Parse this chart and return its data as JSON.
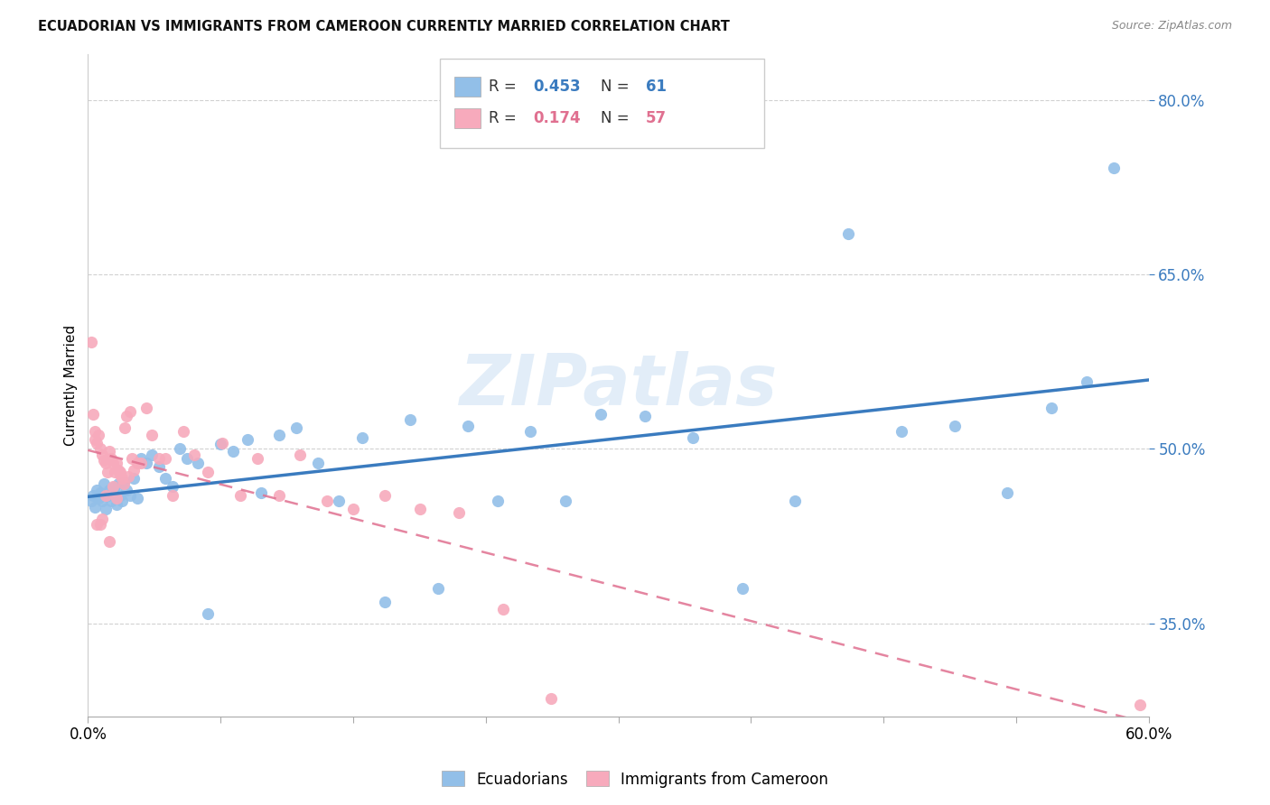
{
  "title": "ECUADORIAN VS IMMIGRANTS FROM CAMEROON CURRENTLY MARRIED CORRELATION CHART",
  "source": "Source: ZipAtlas.com",
  "ylabel": "Currently Married",
  "yticks_labels": [
    "35.0%",
    "50.0%",
    "65.0%",
    "80.0%"
  ],
  "ytick_vals": [
    0.35,
    0.5,
    0.65,
    0.8
  ],
  "xlim": [
    0.0,
    0.6
  ],
  "ylim": [
    0.27,
    0.84
  ],
  "watermark": "ZIPatlas",
  "blue_color": "#92bfe8",
  "pink_color": "#f7aabc",
  "blue_line_color": "#3a7bbf",
  "pink_line_color": "#e07090",
  "r_blue": 0.453,
  "n_blue": 61,
  "r_pink": 0.174,
  "n_pink": 57,
  "ecu_x": [
    0.002,
    0.003,
    0.004,
    0.005,
    0.006,
    0.007,
    0.008,
    0.009,
    0.01,
    0.011,
    0.012,
    0.013,
    0.014,
    0.015,
    0.016,
    0.017,
    0.018,
    0.019,
    0.02,
    0.022,
    0.024,
    0.026,
    0.028,
    0.03,
    0.033,
    0.036,
    0.04,
    0.044,
    0.048,
    0.052,
    0.056,
    0.062,
    0.068,
    0.075,
    0.082,
    0.09,
    0.098,
    0.108,
    0.118,
    0.13,
    0.142,
    0.155,
    0.168,
    0.182,
    0.198,
    0.215,
    0.232,
    0.25,
    0.27,
    0.29,
    0.315,
    0.342,
    0.37,
    0.4,
    0.43,
    0.46,
    0.49,
    0.52,
    0.545,
    0.565,
    0.58
  ],
  "ecu_y": [
    0.455,
    0.46,
    0.45,
    0.465,
    0.458,
    0.462,
    0.455,
    0.47,
    0.448,
    0.46,
    0.465,
    0.455,
    0.462,
    0.468,
    0.452,
    0.47,
    0.46,
    0.455,
    0.472,
    0.465,
    0.46,
    0.475,
    0.458,
    0.492,
    0.488,
    0.495,
    0.485,
    0.475,
    0.468,
    0.5,
    0.492,
    0.488,
    0.358,
    0.504,
    0.498,
    0.508,
    0.462,
    0.512,
    0.518,
    0.488,
    0.455,
    0.51,
    0.368,
    0.525,
    0.38,
    0.52,
    0.455,
    0.515,
    0.455,
    0.53,
    0.528,
    0.51,
    0.38,
    0.455,
    0.685,
    0.515,
    0.52,
    0.462,
    0.535,
    0.558,
    0.742
  ],
  "cam_x": [
    0.002,
    0.003,
    0.004,
    0.004,
    0.005,
    0.006,
    0.007,
    0.008,
    0.009,
    0.01,
    0.011,
    0.012,
    0.013,
    0.014,
    0.015,
    0.016,
    0.017,
    0.018,
    0.019,
    0.02,
    0.021,
    0.022,
    0.023,
    0.024,
    0.025,
    0.026,
    0.028,
    0.03,
    0.033,
    0.036,
    0.04,
    0.044,
    0.048,
    0.054,
    0.06,
    0.068,
    0.076,
    0.086,
    0.096,
    0.108,
    0.12,
    0.135,
    0.15,
    0.168,
    0.188,
    0.21,
    0.235,
    0.262,
    0.005,
    0.007,
    0.008,
    0.01,
    0.012,
    0.014,
    0.016,
    0.018,
    0.595
  ],
  "cam_y": [
    0.592,
    0.53,
    0.515,
    0.508,
    0.505,
    0.512,
    0.5,
    0.495,
    0.49,
    0.488,
    0.48,
    0.498,
    0.492,
    0.488,
    0.48,
    0.488,
    0.482,
    0.48,
    0.475,
    0.47,
    0.518,
    0.528,
    0.476,
    0.532,
    0.492,
    0.482,
    0.488,
    0.488,
    0.535,
    0.512,
    0.492,
    0.492,
    0.46,
    0.515,
    0.495,
    0.48,
    0.505,
    0.46,
    0.492,
    0.46,
    0.495,
    0.455,
    0.448,
    0.46,
    0.448,
    0.445,
    0.362,
    0.285,
    0.435,
    0.435,
    0.44,
    0.46,
    0.42,
    0.468,
    0.458,
    0.478,
    0.28
  ]
}
